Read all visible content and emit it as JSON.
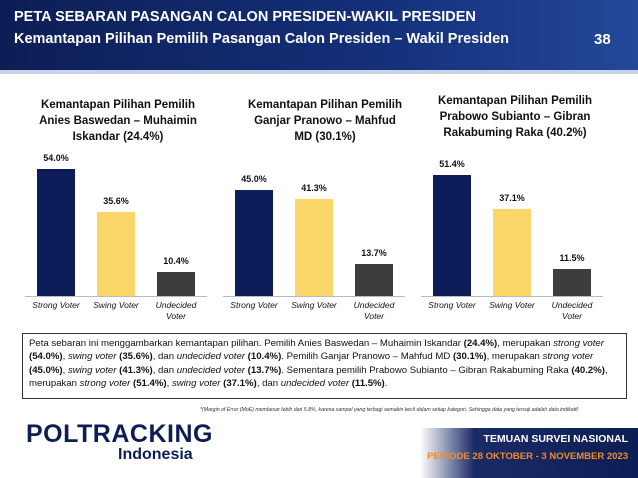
{
  "header": {
    "title": "PETA SEBARAN PASANGAN CALON PRESIDEN-WAKIL PRESIDEN",
    "subtitle": "Kemantapan Pilihan Pemilih Pasangan Calon Presiden – Wakil Presiden",
    "page_number": "38"
  },
  "chart_data": [
    {
      "type": "bar",
      "title": "Kemantapan Pilihan Pemilih Anies Baswedan – Muhaimin Iskandar (24.4%)",
      "categories": [
        "Strong Voter",
        "Swing Voter",
        "Undecided Voter"
      ],
      "values": [
        54.0,
        35.6,
        10.4
      ],
      "value_labels": [
        "54.0%",
        "35.6%",
        "10.4%"
      ],
      "colors": [
        "#0c1d5a",
        "#fbd76a",
        "#3d3d3d"
      ]
    },
    {
      "type": "bar",
      "title": "Kemantapan Pilihan Pemilih Ganjar Pranowo – Mahfud MD (30.1%)",
      "categories": [
        "Strong Voter",
        "Swing Voter",
        "Undecided Voter"
      ],
      "values": [
        45.0,
        41.3,
        13.7
      ],
      "value_labels": [
        "45.0%",
        "41.3%",
        "13.7%"
      ],
      "colors": [
        "#0c1d5a",
        "#fbd76a",
        "#3d3d3d"
      ]
    },
    {
      "type": "bar",
      "title": "Kemantapan Pilihan Pemilih Prabowo Subianto – Gibran Rakabuming Raka (40.2%)",
      "categories": [
        "Strong Voter",
        "Swing Voter",
        "Undecided Voter"
      ],
      "values": [
        51.4,
        37.1,
        11.5
      ],
      "value_labels": [
        "51.4%",
        "37.1%",
        "11.5%"
      ],
      "colors": [
        "#0c1d5a",
        "#fbd76a",
        "#3d3d3d"
      ]
    }
  ],
  "paragraph": [
    {
      "text": "Peta sebaran ini menggambarkan kemantapan pilihan. Pemilih Anies Baswedan – Muhaimin Iskandar "
    },
    {
      "text": "(24.4%)",
      "style": "bold"
    },
    {
      "text": ", merupakan "
    },
    {
      "text": "strong voter ",
      "style": "italic"
    },
    {
      "text": "(54.0%)",
      "style": "bold"
    },
    {
      "text": ", "
    },
    {
      "text": "swing voter ",
      "style": "italic"
    },
    {
      "text": "(35.6%)",
      "style": "bold"
    },
    {
      "text": ", dan "
    },
    {
      "text": "undecided voter ",
      "style": "italic"
    },
    {
      "text": "(10.4%)",
      "style": "bold"
    },
    {
      "text": ". Pemilih Ganjar Pranowo – Mahfud MD "
    },
    {
      "text": "(30.1%)",
      "style": "bold"
    },
    {
      "text": ", merupakan "
    },
    {
      "text": "strong voter ",
      "style": "italic"
    },
    {
      "text": "(45.0%)",
      "style": "bold"
    },
    {
      "text": ", "
    },
    {
      "text": "swing voter ",
      "style": "italic"
    },
    {
      "text": "(41.3%)",
      "style": "bold"
    },
    {
      "text": ", dan "
    },
    {
      "text": "undecided voter ",
      "style": "italic"
    },
    {
      "text": "(13.7%)",
      "style": "bold"
    },
    {
      "text": ". Sementara pemilih Prabowo Subianto – Gibran Rakabuming Raka "
    },
    {
      "text": "(40.2%)",
      "style": "bold"
    },
    {
      "text": ", merupakan "
    },
    {
      "text": "strong voter",
      "style": "italic"
    },
    {
      "text": " "
    },
    {
      "text": "(51.4%)",
      "style": "bold"
    },
    {
      "text": ", "
    },
    {
      "text": "swing voter ",
      "style": "italic"
    },
    {
      "text": "(37.1%)",
      "style": "bold"
    },
    {
      "text": ", dan "
    },
    {
      "text": "undecided voter ",
      "style": "italic"
    },
    {
      "text": "(11.5%)",
      "style": "bold"
    },
    {
      "text": "."
    }
  ],
  "footnote": "*(Margin of Error (MoE) membesar lebih dari 5.8%, karena sampel yang terbagi semakin kecil dalam setiap kategori. Sehingga data yang tersaji adalah data indikatif.",
  "footer": {
    "logo": "POLTRACKING",
    "logo_sub": "Indonesia",
    "label": "TEMUAN SURVEI NASIONAL",
    "period": "PERIODE 28 OKTOBER - 3 NOVEMBER 2023"
  }
}
